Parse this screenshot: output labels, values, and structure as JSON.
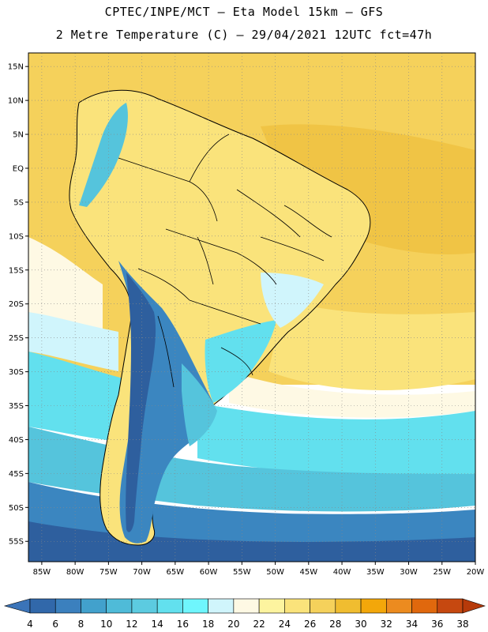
{
  "title": {
    "line1": "CPTEC/INPE/MCT –  Eta Model 15km – GFS",
    "line2": "2 Metre Temperature (C) – 29/04/2021 12UTC fct=47h"
  },
  "map": {
    "lat_range": [
      -58,
      17
    ],
    "lon_range": [
      -87,
      -20
    ],
    "lat_ticks": [
      {
        "value": 15,
        "label": "15N"
      },
      {
        "value": 10,
        "label": "10N"
      },
      {
        "value": 5,
        "label": "5N"
      },
      {
        "value": 0,
        "label": "EQ"
      },
      {
        "value": -5,
        "label": "5S"
      },
      {
        "value": -10,
        "label": "10S"
      },
      {
        "value": -15,
        "label": "15S"
      },
      {
        "value": -20,
        "label": "20S"
      },
      {
        "value": -25,
        "label": "25S"
      },
      {
        "value": -30,
        "label": "30S"
      },
      {
        "value": -35,
        "label": "35S"
      },
      {
        "value": -40,
        "label": "40S"
      },
      {
        "value": -45,
        "label": "45S"
      },
      {
        "value": -50,
        "label": "50S"
      },
      {
        "value": -55,
        "label": "55S"
      }
    ],
    "lon_ticks": [
      {
        "value": -85,
        "label": "85W"
      },
      {
        "value": -80,
        "label": "80W"
      },
      {
        "value": -75,
        "label": "75W"
      },
      {
        "value": -70,
        "label": "70W"
      },
      {
        "value": -65,
        "label": "65W"
      },
      {
        "value": -60,
        "label": "60W"
      },
      {
        "value": -55,
        "label": "55W"
      },
      {
        "value": -50,
        "label": "50W"
      },
      {
        "value": -45,
        "label": "45W"
      },
      {
        "value": -40,
        "label": "40W"
      },
      {
        "value": -35,
        "label": "35W"
      },
      {
        "value": -30,
        "label": "30W"
      },
      {
        "value": -25,
        "label": "25W"
      },
      {
        "value": -20,
        "label": "20W"
      }
    ]
  },
  "colorbar": {
    "labels": [
      "4",
      "6",
      "8",
      "10",
      "12",
      "14",
      "16",
      "18",
      "20",
      "22",
      "24",
      "26",
      "28",
      "30",
      "32",
      "34",
      "36",
      "38"
    ],
    "low_color": "#3b74b8",
    "high_color": "#b63a0a",
    "colors": [
      "#3168aa",
      "#3b80be",
      "#42a1cc",
      "#4fbbd8",
      "#5ccbe0",
      "#62e0ee",
      "#6ff6fd",
      "#d0f5fc",
      "#fef9e4",
      "#fdf49f",
      "#fae37b",
      "#f5d15b",
      "#f0bd30",
      "#f3a70a",
      "#ec8b1f",
      "#e0680d",
      "#c64810"
    ]
  },
  "field_colors": {
    "cold_deep": "#2e5f9e",
    "cold": "#3b86c0",
    "cool": "#55c4dc",
    "mild": "#62e0ee",
    "light": "#d0f5fc",
    "cream": "#fef9e4",
    "warm": "#fae37b",
    "hot": "#f5d15b",
    "hotter": "#f0c445"
  }
}
